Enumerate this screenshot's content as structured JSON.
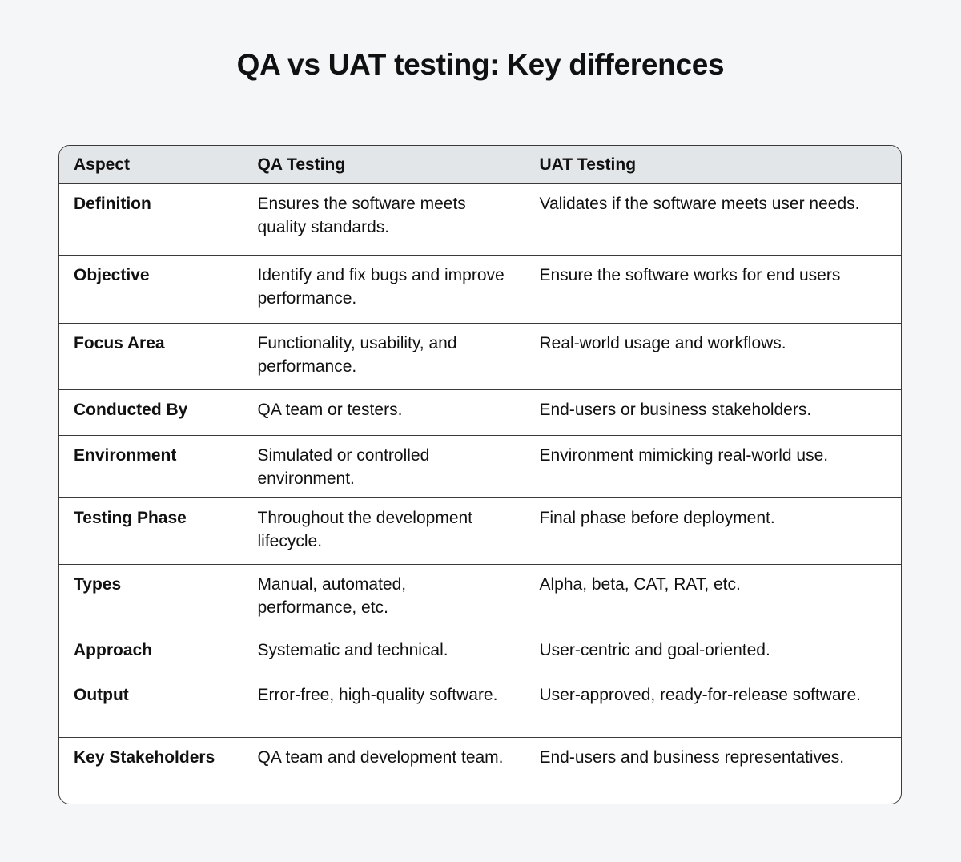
{
  "title": "QA vs UAT testing: Key differences",
  "table": {
    "headers": [
      "Aspect",
      "QA Testing",
      "UAT Testing"
    ],
    "rows": [
      [
        "Definition",
        "Ensures the software meets quality standards.",
        "Validates if the software meets user needs."
      ],
      [
        "Objective",
        "Identify and fix bugs and improve performance.",
        "Ensure the software works for end users"
      ],
      [
        "Focus Area",
        "Functionality, usability, and performance.",
        "Real-world usage and workflows."
      ],
      [
        "Conducted By",
        "QA team or testers.",
        "End-users or business stakeholders."
      ],
      [
        "Environment",
        "Simulated or controlled environment.",
        "Environment mimicking real-world use."
      ],
      [
        "Testing Phase",
        "Throughout the development lifecycle.",
        "Final phase before deployment."
      ],
      [
        "Types",
        "Manual, automated, performance, etc.",
        "Alpha, beta, CAT, RAT, etc."
      ],
      [
        "Approach",
        "Systematic and technical.",
        "User-centric and goal-oriented."
      ],
      [
        "Output",
        "Error-free, high-quality software.",
        "User-approved, ready-for-release software."
      ],
      [
        "Key Stakeholders",
        "QA team and development team.",
        "End-users and business representatives."
      ]
    ]
  }
}
